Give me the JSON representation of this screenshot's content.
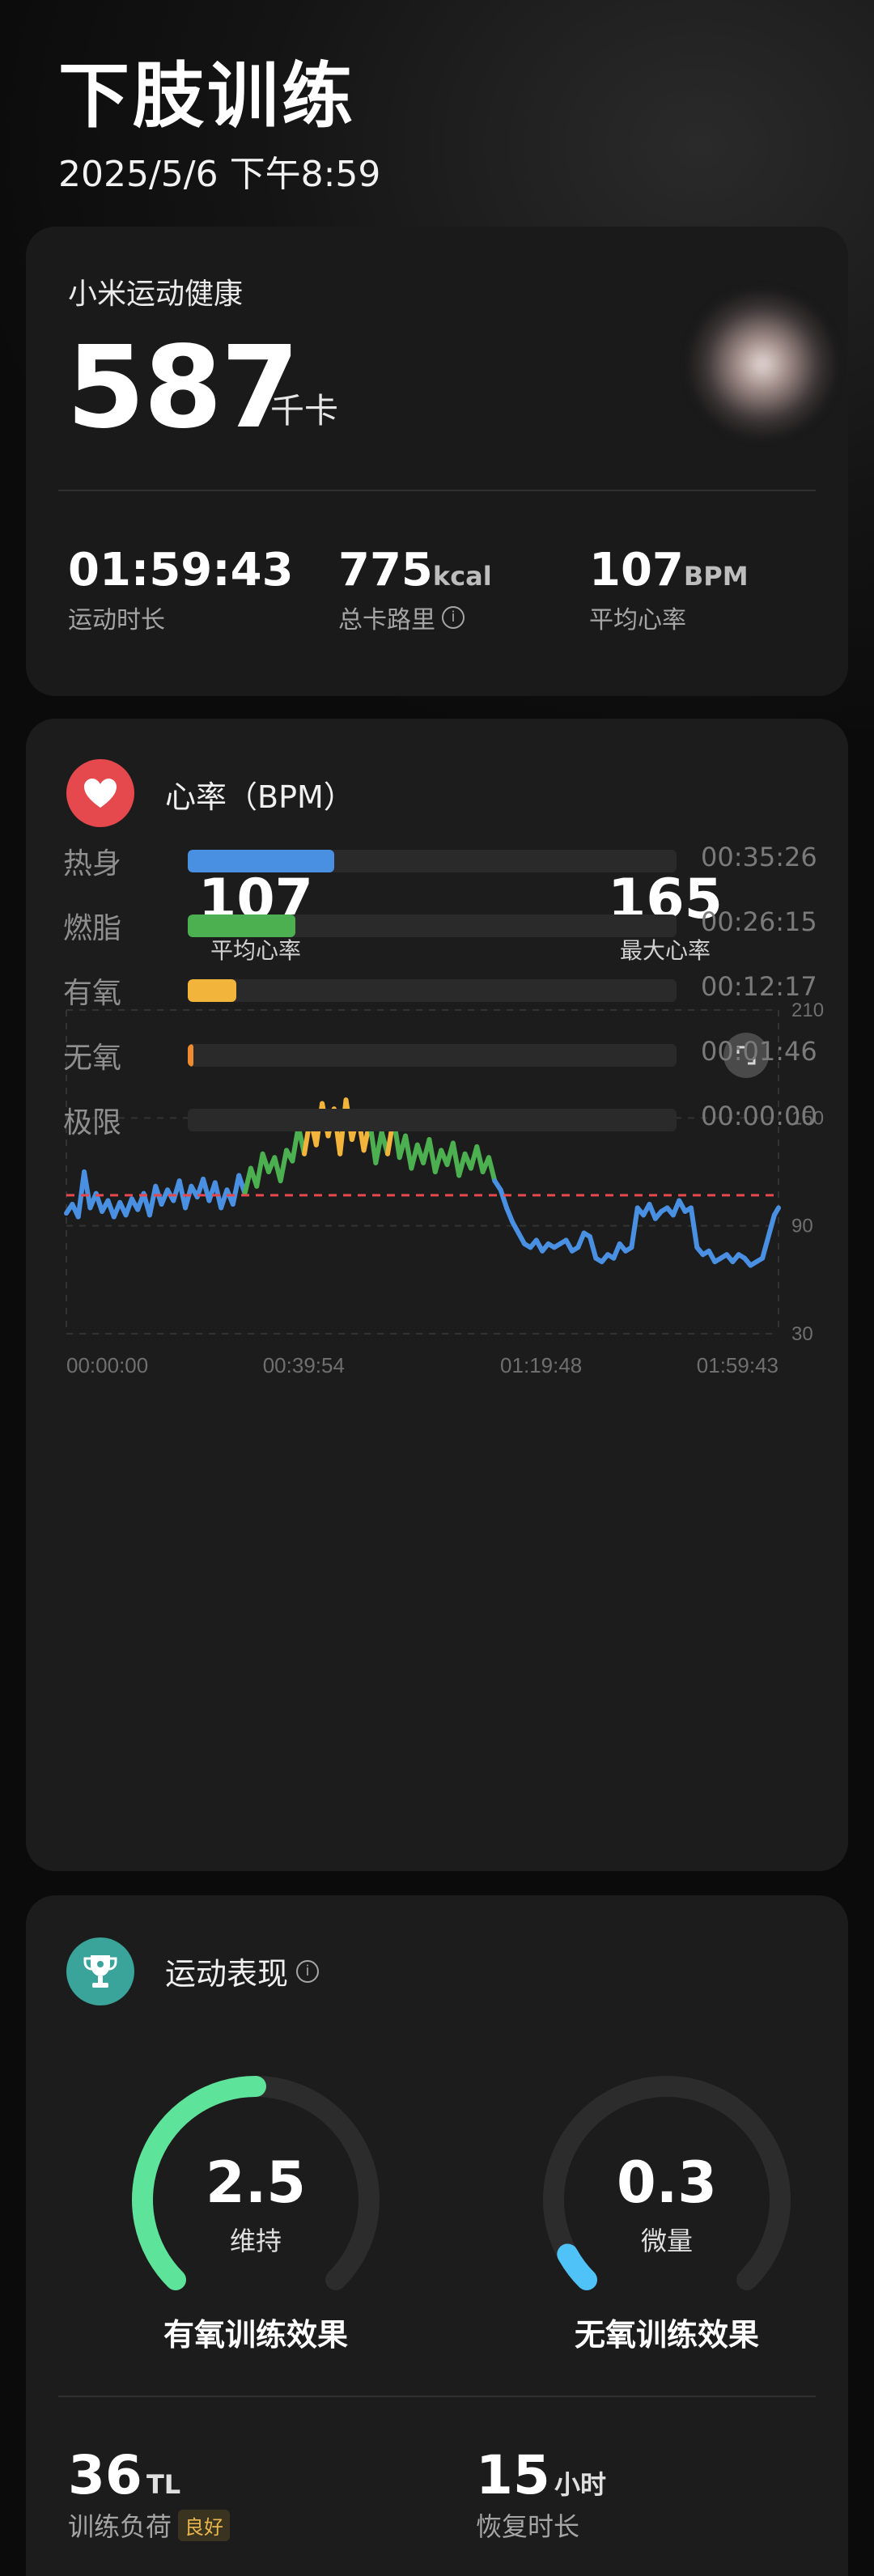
{
  "header": {
    "title": "下肢训练",
    "datetime": "2025/5/6 下午8:59"
  },
  "summary": {
    "source": "小米运动健康",
    "calories": "587",
    "calories_unit": "千卡",
    "stats": [
      {
        "value": "01:59:43",
        "unit": "",
        "label": "运动时长"
      },
      {
        "value": "775",
        "unit": "kcal",
        "label": "总卡路里",
        "icon": "info-icon"
      },
      {
        "value": "107",
        "unit": "BPM",
        "label": "平均心率"
      }
    ]
  },
  "heart_rate": {
    "title": "心率（BPM）",
    "avg_value": "107",
    "avg_label": "平均心率",
    "max_value": "165",
    "max_label": "最大心率",
    "expand_icon": "expand-icon"
  },
  "chart_data": {
    "type": "line",
    "x_ticks": [
      "00:00:00",
      "00:39:54",
      "01:19:48",
      "01:59:43"
    ],
    "y_ticks": [
      "210",
      "150",
      "90",
      "30"
    ],
    "ylim": [
      30,
      210
    ],
    "xlim_minutes": [
      0,
      119.7
    ],
    "reference_line": 107,
    "grid": true,
    "zone_colors": {
      "warmup": "#4a90e2",
      "fatburn": "#4caf50",
      "aerobic": "#f2b43a"
    },
    "series": [
      {
        "x": [
          0,
          1,
          2,
          3,
          4,
          5,
          6,
          7,
          8,
          9,
          10,
          11,
          12,
          13,
          14,
          15,
          16,
          17,
          18,
          19,
          20,
          21,
          22,
          23,
          24,
          25,
          26,
          27,
          28,
          29,
          30,
          31,
          32,
          33,
          34,
          35,
          36,
          37,
          38,
          39,
          40,
          41,
          42,
          43,
          44,
          45,
          46,
          47,
          48,
          49,
          50,
          51,
          52,
          53,
          54,
          55,
          56,
          57,
          58,
          59,
          60,
          61,
          62,
          63,
          64,
          65,
          66,
          67,
          68,
          69,
          70,
          71,
          72,
          73,
          74,
          75,
          76,
          77,
          78,
          79,
          80,
          81,
          82,
          83,
          84,
          85,
          86,
          87,
          88,
          89,
          90,
          91,
          92,
          93,
          94,
          95,
          96,
          97,
          98,
          99,
          100,
          101,
          102,
          103,
          104,
          105,
          106,
          107,
          108,
          109,
          110,
          111,
          112,
          113,
          114,
          115,
          116,
          117,
          118,
          119,
          119.7
        ],
        "values": [
          97,
          102,
          95,
          120,
          100,
          108,
          98,
          104,
          95,
          103,
          96,
          105,
          99,
          108,
          96,
          112,
          102,
          110,
          104,
          115,
          100,
          112,
          106,
          116,
          104,
          114,
          100,
          110,
          102,
          118,
          108,
          122,
          112,
          130,
          120,
          128,
          115,
          132,
          126,
          145,
          130,
          150,
          135,
          158,
          140,
          155,
          130,
          160,
          138,
          152,
          132,
          148,
          125,
          142,
          130,
          150,
          128,
          140,
          122,
          135,
          125,
          138,
          120,
          132,
          124,
          136,
          118,
          130,
          122,
          134,
          120,
          128,
          115,
          110,
          100,
          92,
          86,
          80,
          78,
          82,
          76,
          80,
          78,
          80,
          82,
          76,
          78,
          86,
          84,
          72,
          70,
          74,
          72,
          80,
          76,
          78,
          100,
          96,
          102,
          94,
          98,
          100,
          96,
          104,
          98,
          100,
          78,
          74,
          76,
          70,
          72,
          74,
          70,
          74,
          72,
          68,
          70,
          72,
          84,
          96,
          100
        ]
      }
    ]
  },
  "zones": [
    {
      "name": "热身",
      "time": "00:35:26",
      "fraction": 0.3,
      "color": "#4a90e2"
    },
    {
      "name": "燃脂",
      "time": "00:26:15",
      "fraction": 0.22,
      "color": "#4caf50"
    },
    {
      "name": "有氧",
      "time": "00:12:17",
      "fraction": 0.1,
      "color": "#f2b43a"
    },
    {
      "name": "无氧",
      "time": "00:01:46",
      "fraction": 0.012,
      "color": "#f08a30"
    },
    {
      "name": "极限",
      "time": "00:00:00",
      "fraction": 0.0,
      "color": "#e5484d"
    }
  ],
  "performance": {
    "title": "运动表现",
    "aerobic": {
      "value": "2.5",
      "level": "维持",
      "title": "有氧训练效果",
      "fraction": 0.5,
      "color": "#5ee39a"
    },
    "anaerobic": {
      "value": "0.3",
      "level": "微量",
      "title": "无氧训练效果",
      "fraction": 0.06,
      "color": "#4fc3f7"
    },
    "load": {
      "value": "36",
      "unit": "TL",
      "label": "训练负荷",
      "badge": "良好"
    },
    "recovery": {
      "value": "15",
      "unit": "小时",
      "label": "恢复时长"
    }
  }
}
